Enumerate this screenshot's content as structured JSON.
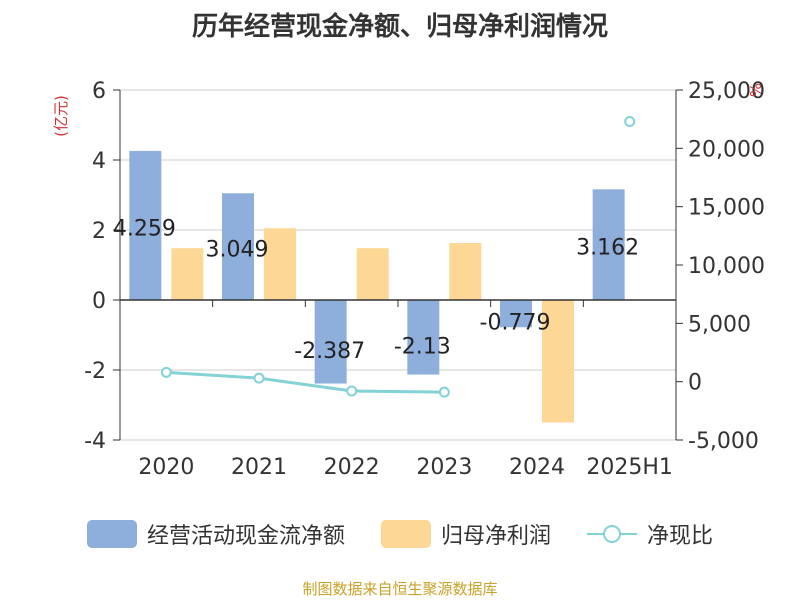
{
  "title": "历年经营现金净额、归母净利润情况",
  "source": "制图数据来自恒生聚源数据库",
  "left_unit": "(亿元)",
  "right_unit": "%",
  "colors": {
    "cash": "#8eaedb",
    "profit": "#fdd795",
    "ratio": "#82d2d6",
    "grid": "#cccccc",
    "axis": "#333333"
  },
  "chart_data": {
    "type": "bar",
    "categories": [
      "2020",
      "2021",
      "2022",
      "2023",
      "2024",
      "2025H1"
    ],
    "series": [
      {
        "name": "经营活动现金流净额",
        "type": "bar",
        "axis": "left",
        "values": [
          4.259,
          3.049,
          -2.387,
          -2.13,
          -0.779,
          3.162
        ],
        "labels": [
          "4.259",
          "3.049",
          "-2.387",
          "-2.13",
          "-0.779",
          "3.162"
        ]
      },
      {
        "name": "归母净利润",
        "type": "bar",
        "axis": "left",
        "values": [
          1.48,
          2.05,
          1.48,
          1.63,
          -3.5,
          null
        ]
      },
      {
        "name": "净现比",
        "type": "line",
        "axis": "right",
        "values": [
          800,
          300,
          -800,
          -900,
          null,
          22300
        ]
      }
    ],
    "left_axis": {
      "ylim": [
        -4,
        6
      ],
      "ticks": [
        "-4",
        "-2",
        "0",
        "2",
        "4",
        "6"
      ]
    },
    "right_axis": {
      "ylim": [
        -5000,
        25000
      ],
      "ticks": [
        "-5,000",
        "0",
        "5,000",
        "10,000",
        "15,000",
        "20,000",
        "25,000"
      ]
    },
    "grid": true,
    "legend_position": "bottom"
  }
}
